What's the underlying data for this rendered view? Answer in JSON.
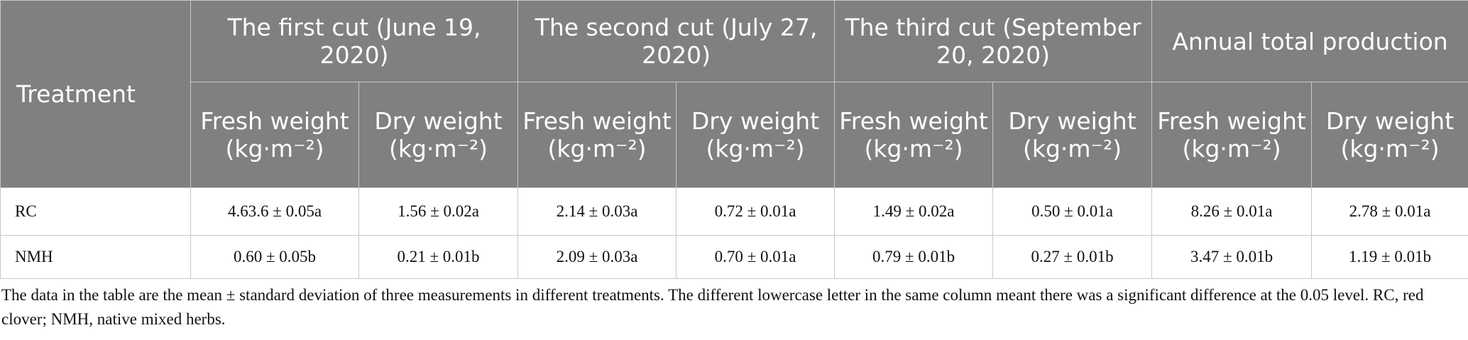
{
  "header": {
    "treatment": "Treatment",
    "groups": [
      "The first cut (June 19, 2020)",
      "The second cut (July 27, 2020)",
      "The third cut (September 20, 2020)",
      "Annual total production"
    ],
    "subheaders": [
      {
        "label": "Fresh weight",
        "unit": "(kg·m⁻²)"
      },
      {
        "label": "Dry weight",
        "unit": "(kg·m⁻²)"
      },
      {
        "label": "Fresh weight",
        "unit": "(kg·m⁻²)"
      },
      {
        "label": "Dry weight",
        "unit": "(kg·m⁻²)"
      },
      {
        "label": "Fresh weight",
        "unit": "(kg·m⁻²)"
      },
      {
        "label": "Dry weight",
        "unit": "(kg·m⁻²)"
      },
      {
        "label": "Fresh weight",
        "unit": "(kg·m⁻²)"
      },
      {
        "label": "Dry weight",
        "unit": "(kg·m⁻²)"
      }
    ]
  },
  "table": {
    "rows": [
      {
        "treatment": "RC",
        "values": [
          "4.63.6 ± 0.05a",
          "1.56 ± 0.02a",
          "2.14 ± 0.03a",
          "0.72 ± 0.01a",
          "1.49 ± 0.02a",
          "0.50 ± 0.01a",
          "8.26 ± 0.01a",
          "2.78 ± 0.01a"
        ]
      },
      {
        "treatment": "NMH",
        "values": [
          "0.60 ± 0.05b",
          "0.21 ± 0.01b",
          "2.09 ± 0.03a",
          "0.70 ± 0.01a",
          "0.79 ± 0.01b",
          "0.27 ± 0.01b",
          "3.47 ± 0.01b",
          "1.19 ± 0.01b"
        ]
      }
    ]
  },
  "footnote": "The data in the table are the mean ± standard deviation of three measurements in different treatments. The different lowercase letter in the same column meant there was a significant difference at the 0.05 level. RC, red clover; NMH, native mixed herbs."
}
